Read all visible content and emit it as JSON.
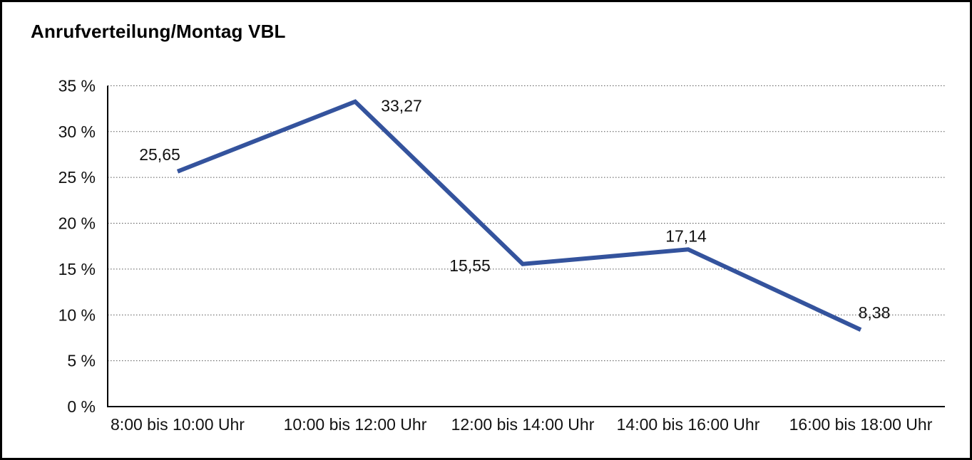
{
  "page": {
    "background_color": "#ffffff",
    "frame_border_color": "#000000"
  },
  "chart_data": {
    "type": "line",
    "title": "Anrufverteilung/Montag VBL",
    "categories": [
      "8:00 bis 10:00 Uhr",
      "10:00 bis 12:00 Uhr",
      "12:00 bis 14:00 Uhr",
      "14:00 bis 16:00 Uhr",
      "16:00 bis 18:00 Uhr"
    ],
    "values": [
      25.65,
      33.27,
      15.55,
      17.14,
      8.38
    ],
    "point_labels": [
      "25,65",
      "33,27",
      "15,55",
      "17,14",
      "8,38"
    ],
    "y_ticks": [
      "0 %",
      "5 %",
      "10 %",
      "15 %",
      "20 %",
      "25 %",
      "30 %",
      "35 %"
    ],
    "ylim": [
      0,
      35
    ],
    "ytick_step": 5,
    "xlabel": "",
    "ylabel": "",
    "grid": "horizontal-dotted",
    "legend": "none",
    "line_color": "#34539d",
    "axis_color": "#000000",
    "gridline_color": "#555555",
    "text_color": "#111111"
  }
}
